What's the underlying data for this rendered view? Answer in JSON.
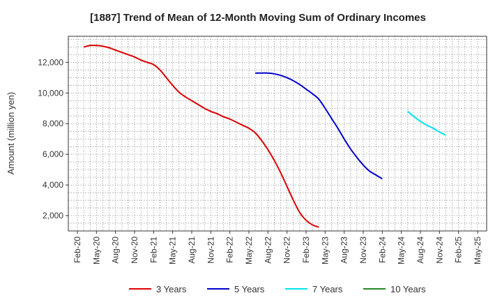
{
  "chart_data": {
    "type": "line",
    "title": "[1887]  Trend of Mean of 12-Month Moving Sum of Ordinary Incomes",
    "xlabel": "",
    "ylabel": "Amount (million yen)",
    "x_ticks": [
      "Feb-20",
      "May-20",
      "Aug-20",
      "Nov-20",
      "Feb-21",
      "May-21",
      "Aug-21",
      "Nov-21",
      "Feb-22",
      "May-22",
      "Aug-22",
      "Nov-22",
      "Feb-23",
      "May-23",
      "Aug-23",
      "Nov-23",
      "Feb-24",
      "May-24",
      "Aug-24",
      "Nov-24",
      "Feb-25",
      "May-25"
    ],
    "y_ticks": [
      2000,
      4000,
      6000,
      8000,
      10000,
      12000
    ],
    "y_tick_labels": [
      "2,000",
      "4,000",
      "6,000",
      "8,000",
      "10,000",
      "12,000"
    ],
    "ylim": [
      1000,
      13700
    ],
    "grid": true,
    "legend_position": "bottom",
    "series": [
      {
        "name": "3 Years",
        "color": "#dd0000",
        "start_index": 1,
        "values": [
          13000,
          13100,
          13100,
          13050,
          12950,
          12800,
          12650,
          12500,
          12350,
          12150,
          12000,
          11850,
          11500,
          11000,
          10500,
          10050,
          9750,
          9500,
          9250,
          9000,
          8800,
          8650,
          8450,
          8300,
          8100,
          7900,
          7700,
          7400,
          6900,
          6300,
          5600,
          4800,
          3900,
          3000,
          2200,
          1700,
          1400,
          1250
        ]
      },
      {
        "name": "5 Years",
        "color": "#0000cc",
        "start_index": 28,
        "values": [
          11300,
          11300,
          11300,
          11250,
          11150,
          11000,
          10800,
          10550,
          10250,
          9950,
          9600,
          9000,
          8350,
          7700,
          7000,
          6350,
          5800,
          5300,
          4900,
          4650,
          4400
        ]
      },
      {
        "name": "7 Years",
        "color": "#00e5ee",
        "start_index": 52,
        "values": [
          8800,
          8450,
          8150,
          7900,
          7700,
          7450,
          7250
        ]
      },
      {
        "name": "10 Years",
        "color": "#228b22",
        "start_index": 0,
        "values": []
      }
    ]
  }
}
